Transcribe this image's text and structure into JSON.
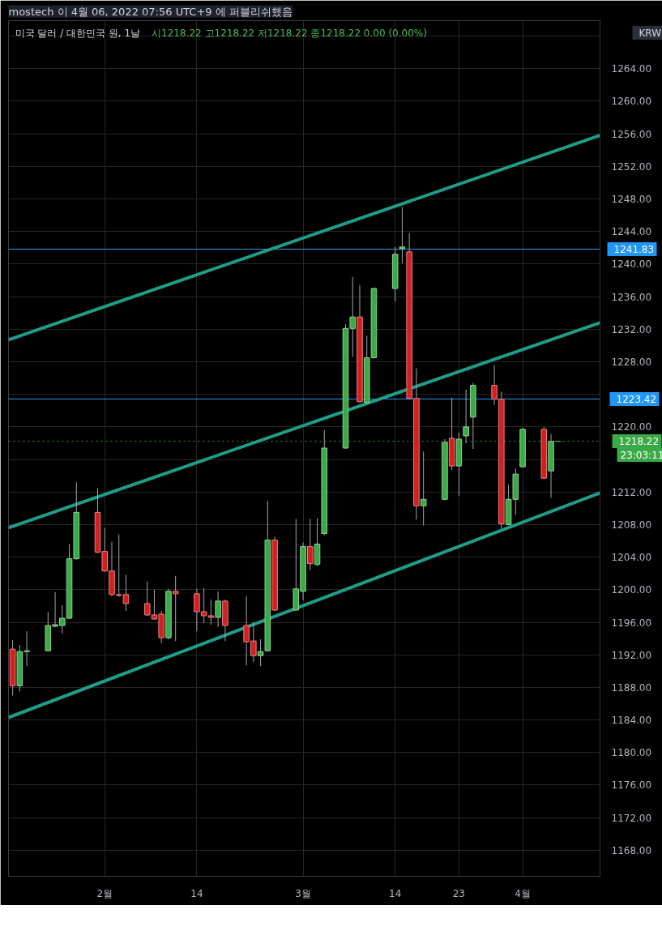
{
  "chart_data": {
    "type": "candlestick",
    "title": "미국 달러 / 대한민국 원, 1날",
    "subtitle": "시1218.22 고1218.22 저1218.22 종1218.22 0.00 (0.00%)",
    "annotations": [
      "mostech 이 4월 06, 2022 07:56 UTC+9 에 퍼블리쉬했음",
      "KRW",
      "23:03:11"
    ],
    "x": [
      "2022-01-19",
      "2022-01-20",
      "2022-01-21",
      "2022-01-24",
      "2022-01-25",
      "2022-01-26",
      "2022-01-27",
      "2022-01-28",
      "2022-01-31",
      "2022-02-01",
      "2022-02-02",
      "2022-02-03",
      "2022-02-04",
      "2022-02-07",
      "2022-02-08",
      "2022-02-09",
      "2022-02-10",
      "2022-02-11",
      "2022-02-14",
      "2022-02-15",
      "2022-02-16",
      "2022-02-17",
      "2022-02-18",
      "2022-02-21",
      "2022-02-22",
      "2022-02-23",
      "2022-02-24",
      "2022-02-25",
      "2022-02-28",
      "2022-03-01",
      "2022-03-02",
      "2022-03-03",
      "2022-03-04",
      "2022-03-07",
      "2022-03-08",
      "2022-03-09",
      "2022-03-10",
      "2022-03-11",
      "2022-03-14",
      "2022-03-15",
      "2022-03-16",
      "2022-03-17",
      "2022-03-18",
      "2022-03-21",
      "2022-03-22",
      "2022-03-23",
      "2022-03-24",
      "2022-03-25",
      "2022-03-28",
      "2022-03-29",
      "2022-03-30",
      "2022-03-31",
      "2022-04-01",
      "2022-04-04",
      "2022-04-05",
      "2022-04-06"
    ],
    "ohlc": [
      [
        1192.7,
        1193.8,
        1187.0,
        1188.2
      ],
      [
        1188.2,
        1193.2,
        1187.5,
        1192.4
      ],
      [
        1192.4,
        1194.9,
        1190.6,
        1192.5
      ],
      [
        1192.5,
        1197.3,
        1192.4,
        1195.6
      ],
      [
        1195.5,
        1199.7,
        1195.4,
        1195.7
      ],
      [
        1195.6,
        1198.1,
        1194.6,
        1196.5
      ],
      [
        1196.5,
        1205.6,
        1196.4,
        1203.8
      ],
      [
        1203.8,
        1213.2,
        1203.7,
        1209.5
      ],
      [
        1209.5,
        1212.4,
        1204.5,
        1204.6
      ],
      [
        1204.7,
        1207.6,
        1202.2,
        1202.3
      ],
      [
        1202.3,
        1205.9,
        1199.2,
        1199.4
      ],
      [
        1199.4,
        1206.8,
        1199.1,
        1199.3
      ],
      [
        1199.4,
        1201.8,
        1197.4,
        1198.3
      ],
      [
        1198.3,
        1201.0,
        1196.8,
        1196.9
      ],
      [
        1196.9,
        1200.0,
        1196.3,
        1196.4
      ],
      [
        1197.0,
        1197.4,
        1193.4,
        1194.1
      ],
      [
        1194.1,
        1200.1,
        1193.9,
        1199.8
      ],
      [
        1199.8,
        1201.7,
        1193.7,
        1199.5
      ],
      [
        1199.5,
        1200.1,
        1194.9,
        1197.3
      ],
      [
        1197.3,
        1200.2,
        1195.9,
        1196.8
      ],
      [
        1196.8,
        1198.8,
        1195.7,
        1196.6
      ],
      [
        1196.6,
        1199.8,
        1195.4,
        1198.6
      ],
      [
        1198.6,
        1198.8,
        1193.7,
        1195.6
      ],
      [
        1195.6,
        1199.2,
        1190.7,
        1193.6
      ],
      [
        1193.7,
        1196.0,
        1191.1,
        1191.9
      ],
      [
        1191.9,
        1193.9,
        1190.6,
        1192.4
      ],
      [
        1192.5,
        1210.9,
        1192.4,
        1206.1
      ],
      [
        1206.1,
        1206.5,
        1197.4,
        1197.5
      ],
      [
        1197.5,
        1208.7,
        1197.4,
        1200.1
      ],
      [
        1199.8,
        1205.8,
        1198.7,
        1205.3
      ],
      [
        1205.3,
        1208.7,
        1202.4,
        1203.2
      ],
      [
        1203.1,
        1208.8,
        1202.9,
        1205.6
      ],
      [
        1206.9,
        1219.6,
        1206.7,
        1217.4
      ],
      [
        1217.4,
        1232.6,
        1217.3,
        1232.1
      ],
      [
        1232.1,
        1238.4,
        1228.6,
        1233.5
      ],
      [
        1233.5,
        1237.4,
        1223.0,
        1223.1
      ],
      [
        1223.0,
        1231.2,
        1222.9,
        1228.5
      ],
      [
        1228.5,
        1237.1,
        1228.4,
        1237.0
      ],
      [
        1237.0,
        1242.1,
        1235.4,
        1241.2
      ],
      [
        1241.9,
        1247.0,
        1240.1,
        1242.1
      ],
      [
        1241.5,
        1243.8,
        1223.4,
        1223.5
      ],
      [
        1223.5,
        1227.2,
        1208.6,
        1210.3
      ],
      [
        1210.3,
        1217.0,
        1207.9,
        1211.1
      ],
      [
        1211.1,
        1218.5,
        1211.0,
        1218.1
      ],
      [
        1218.6,
        1223.6,
        1214.7,
        1215.2
      ],
      [
        1215.2,
        1219.3,
        1211.5,
        1218.5
      ],
      [
        1218.9,
        1224.6,
        1218.0,
        1220.0
      ],
      [
        1221.2,
        1225.4,
        1217.3,
        1225.1
      ],
      [
        1225.1,
        1227.6,
        1222.7,
        1223.4
      ],
      [
        1223.4,
        1224.3,
        1207.5,
        1208.1
      ],
      [
        1208.0,
        1212.9,
        1207.9,
        1211.1
      ],
      [
        1211.1,
        1214.9,
        1209.2,
        1214.2
      ],
      [
        1215.1,
        1219.9,
        1215.0,
        1219.7
      ],
      [
        1219.7,
        1220.0,
        1213.6,
        1213.7
      ],
      [
        1214.6,
        1219.1,
        1211.3,
        1218.22
      ],
      [
        1218.22,
        1218.22,
        1218.22,
        1218.22
      ]
    ],
    "colors": [
      "#d21f1f",
      "#3aaa46",
      "#3aaa46",
      "#3aaa46",
      "#3aaa46",
      "#3aaa46",
      "#3aaa46",
      "#3aaa46",
      "#d21f1f",
      "#d21f1f",
      "#d21f1f",
      "#d21f1f",
      "#d21f1f",
      "#d21f1f",
      "#d21f1f",
      "#d21f1f",
      "#3aaa46",
      "#d21f1f",
      "#d21f1f",
      "#d21f1f",
      "#d21f1f",
      "#3aaa46",
      "#d21f1f",
      "#d21f1f",
      "#d21f1f",
      "#3aaa46",
      "#3aaa46",
      "#d21f1f",
      "#3aaa46",
      "#3aaa46",
      "#d21f1f",
      "#3aaa46",
      "#3aaa46",
      "#3aaa46",
      "#3aaa46",
      "#d21f1f",
      "#3aaa46",
      "#3aaa46",
      "#3aaa46",
      "#3aaa46",
      "#d21f1f",
      "#d21f1f",
      "#3aaa46",
      "#3aaa46",
      "#d21f1f",
      "#3aaa46",
      "#3aaa46",
      "#3aaa46",
      "#d21f1f",
      "#d21f1f",
      "#3aaa46",
      "#3aaa46",
      "#3aaa46",
      "#d21f1f",
      "#3aaa46",
      "#3aaa46"
    ],
    "series": [
      {
        "type": "line",
        "color": "#1f9d87",
        "x": [
          "2022-01-18T10:00",
          "2022-04-11T22:00"
        ],
        "values": [
          1230.7,
          1255.8
        ]
      },
      {
        "type": "line",
        "color": "#1f9d87",
        "x": [
          "2022-01-18T10:00",
          "2022-04-11T22:00"
        ],
        "values": [
          1207.6,
          1232.8
        ]
      },
      {
        "type": "line",
        "color": "#1f9d87",
        "x": [
          "2022-01-18T10:00",
          "2022-04-11T22:00"
        ],
        "values": [
          1184.3,
          1211.9
        ]
      }
    ],
    "ref_lines": [
      {
        "axis": "y",
        "value": 1241.83,
        "label": "1241.83",
        "color": "#2196f3"
      },
      {
        "axis": "y",
        "value": 1223.42,
        "label": "1223.42",
        "color": "#2196f3"
      },
      {
        "axis": "y",
        "value": 1218.22,
        "label": "1218.22",
        "color": "#3aaa46",
        "line_style": "dotted"
      }
    ],
    "xlim": [
      "2022-01-18T10:00",
      "2022-04-11T22:00"
    ],
    "xticks": [
      {
        "value": "2022-02-01",
        "label": "2월"
      },
      {
        "value": "2022-02-14",
        "label": "14"
      },
      {
        "value": "2022-03-01",
        "label": "3월"
      },
      {
        "value": "2022-03-14",
        "label": "14"
      },
      {
        "value": "2022-03-23",
        "label": "23"
      },
      {
        "value": "2022-04-01",
        "label": "4월"
      }
    ],
    "ylim": [
      1164.8,
      1269.9
    ],
    "yticks": [
      {
        "value": 1168,
        "label": "1168.00"
      },
      {
        "value": 1172,
        "label": "1172.00"
      },
      {
        "value": 1176,
        "label": "1176.00"
      },
      {
        "value": 1180,
        "label": "1180.00"
      },
      {
        "value": 1184,
        "label": "1184.00"
      },
      {
        "value": 1188,
        "label": "1188.00"
      },
      {
        "value": 1192,
        "label": "1192.00"
      },
      {
        "value": 1196,
        "label": "1196.00"
      },
      {
        "value": 1200,
        "label": "1200.00"
      },
      {
        "value": 1204,
        "label": "1204.00"
      },
      {
        "value": 1208,
        "label": "1208.00"
      },
      {
        "value": 1212,
        "label": "1212.00"
      },
      {
        "value": 1216,
        "label": null
      },
      {
        "value": 1220,
        "label": "1220.00"
      },
      {
        "value": 1224,
        "label": null
      },
      {
        "value": 1228,
        "label": "1228.00"
      },
      {
        "value": 1232,
        "label": "1232.00"
      },
      {
        "value": 1236,
        "label": "1236.00"
      },
      {
        "value": 1240,
        "label": "1240.00"
      },
      {
        "value": 1244,
        "label": "1244.00"
      },
      {
        "value": 1248,
        "label": "1248.00"
      },
      {
        "value": 1252,
        "label": "1252.00"
      },
      {
        "value": 1256,
        "label": "1256.00"
      },
      {
        "value": 1260,
        "label": "1260.00"
      },
      {
        "value": 1264,
        "label": "1264.00"
      },
      {
        "value": 1268,
        "label": null
      }
    ],
    "grid": true
  }
}
